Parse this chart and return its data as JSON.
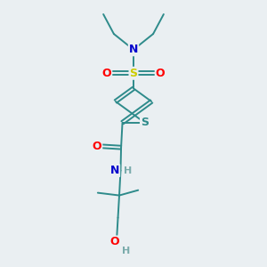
{
  "bg_color": "#eaeff2",
  "atom_colors": {
    "C": "#2e8b8b",
    "H": "#7aabab",
    "N": "#0000cc",
    "O": "#ff0000",
    "S_sulfonyl": "#cccc00",
    "S_thio": "#2e8b8b"
  },
  "bond_color": "#2e8b8b",
  "figsize": [
    3.0,
    3.0
  ],
  "dpi": 100,
  "lw": 1.4
}
